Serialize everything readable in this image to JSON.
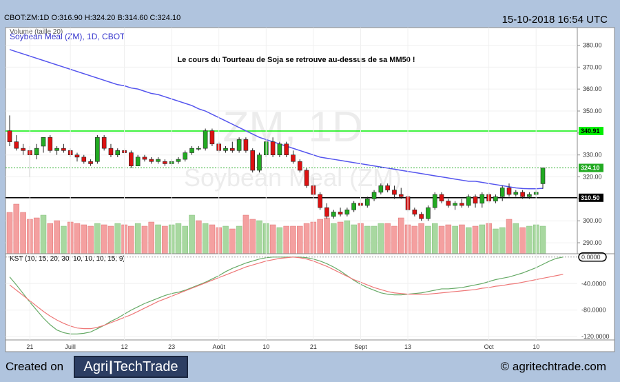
{
  "header": {
    "ohlc_line": "CBOT:ZM:1D O:316.90 H:324.20 B:314.60 C:324.10",
    "timestamp": "15-10-2018 16:54 UTC"
  },
  "footer": {
    "created_on": "Created on",
    "logo_left": "Agri",
    "logo_right": "TechTrade",
    "copyright": "© agritechtrade.com"
  },
  "colors": {
    "up": "#22aa22",
    "down": "#dd1111",
    "ma": "#5555ee",
    "resistance": "#00ee00",
    "support": "#000000"
  },
  "chart_data": [
    {
      "type": "candlestick",
      "legend_volume": "Volume (taille 20)",
      "legend_symbol": "Soybean Meal (ZM), 1D, CBOT",
      "annotation": "Le cours du Tourteau de Soja se retrouve au-dessus de sa MM50 !",
      "watermark_symbol": "ZM, 1D",
      "watermark_name": "Soybean Meal (ZM)",
      "ylim": [
        285,
        388
      ],
      "yticks": [
        "290.00",
        "300.00",
        "310.00",
        "320.00",
        "330.00",
        "340.00",
        "350.00",
        "360.00",
        "370.00",
        "380.00"
      ],
      "ytick_values": [
        290,
        300,
        310,
        320,
        330,
        340,
        350,
        360,
        370,
        380
      ],
      "xtick_labels": [
        "21",
        "Juill",
        "12",
        "23",
        "Août",
        "10",
        "21",
        "Sept",
        "13",
        "Oct",
        "10"
      ],
      "xtick_index": [
        3,
        9,
        17,
        24,
        31,
        38,
        45,
        52,
        59,
        71,
        78
      ],
      "candles": [
        [
          341,
          348,
          334,
          336
        ],
        [
          336,
          339,
          332,
          333
        ],
        [
          333,
          335,
          330,
          332
        ],
        [
          332,
          334,
          320,
          330
        ],
        [
          330,
          335,
          328,
          333
        ],
        [
          334,
          338,
          331,
          338
        ],
        [
          338,
          339,
          331,
          332
        ],
        [
          332,
          334,
          330,
          333
        ],
        [
          333,
          335,
          331,
          332
        ],
        [
          332,
          333,
          329,
          330
        ],
        [
          330,
          331,
          327,
          329
        ],
        [
          329,
          330,
          326,
          327
        ],
        [
          327,
          328,
          325,
          326
        ],
        [
          327,
          339,
          326,
          338
        ],
        [
          338,
          339,
          332,
          333
        ],
        [
          333,
          335,
          329,
          330
        ],
        [
          330,
          333,
          329,
          332
        ],
        [
          332,
          333,
          331,
          331
        ],
        [
          331,
          332,
          324,
          325
        ],
        [
          325,
          330,
          325,
          329
        ],
        [
          329,
          330,
          327,
          328
        ],
        [
          328,
          329,
          326,
          327
        ],
        [
          327,
          329,
          326,
          328
        ],
        [
          327,
          328,
          325,
          326
        ],
        [
          326,
          328,
          325,
          327
        ],
        [
          327,
          329,
          326,
          328
        ],
        [
          328,
          332,
          327,
          331
        ],
        [
          331,
          334,
          330,
          333
        ],
        [
          333,
          334,
          332,
          333
        ],
        [
          333,
          342,
          332,
          341
        ],
        [
          341,
          342,
          334,
          335
        ],
        [
          335,
          336,
          331,
          332
        ],
        [
          332,
          334,
          331,
          333
        ],
        [
          333,
          336,
          331,
          332
        ],
        [
          332,
          338,
          331,
          337
        ],
        [
          337,
          338,
          331,
          332
        ],
        [
          332,
          333,
          322,
          323
        ],
        [
          323,
          331,
          322,
          330
        ],
        [
          330,
          337,
          329,
          336
        ],
        [
          336,
          338,
          329,
          330
        ],
        [
          330,
          336,
          329,
          335
        ],
        [
          335,
          336,
          329,
          330
        ],
        [
          330,
          332,
          326,
          327
        ],
        [
          327,
          328,
          322,
          323
        ],
        [
          323,
          324,
          315,
          316
        ],
        [
          316,
          320,
          310,
          312
        ],
        [
          312,
          313,
          305,
          306
        ],
        [
          306,
          308,
          301,
          302
        ],
        [
          302,
          305,
          301,
          304
        ],
        [
          304,
          306,
          302,
          303
        ],
        [
          303,
          306,
          302,
          305
        ],
        [
          305,
          309,
          304,
          308
        ],
        [
          308,
          310,
          306,
          307
        ],
        [
          307,
          311,
          306,
          310
        ],
        [
          310,
          314,
          309,
          313
        ],
        [
          313,
          317,
          312,
          316
        ],
        [
          316,
          317,
          313,
          314
        ],
        [
          314,
          316,
          310,
          312
        ],
        [
          312,
          315,
          310,
          311
        ],
        [
          311,
          312,
          304,
          305
        ],
        [
          305,
          306,
          302,
          303
        ],
        [
          303,
          304,
          300,
          301
        ],
        [
          301,
          307,
          300,
          306
        ],
        [
          306,
          313,
          305,
          312
        ],
        [
          312,
          313,
          308,
          309
        ],
        [
          309,
          310,
          306,
          307
        ],
        [
          307,
          309,
          305,
          308
        ],
        [
          308,
          310,
          306,
          307
        ],
        [
          307,
          312,
          306,
          311
        ],
        [
          311,
          312,
          306,
          308
        ],
        [
          308,
          313,
          306,
          312
        ],
        [
          312,
          313,
          308,
          309
        ],
        [
          309,
          312,
          308,
          311
        ],
        [
          311,
          316,
          309,
          315
        ],
        [
          315,
          317,
          311,
          312
        ],
        [
          312,
          314,
          311,
          313
        ],
        [
          313,
          314,
          310,
          311
        ],
        [
          311,
          313,
          310,
          312
        ],
        [
          312,
          314,
          311,
          313
        ],
        [
          316.9,
          324.2,
          314.6,
          324.1
        ]
      ],
      "volume_up": [
        0,
        0,
        0,
        0,
        0,
        1,
        0,
        0,
        1,
        0,
        0,
        0,
        0,
        1,
        0,
        0,
        1,
        0,
        0,
        1,
        0,
        0,
        1,
        0,
        1,
        1,
        1,
        1,
        0,
        1,
        0,
        0,
        1,
        0,
        1,
        0,
        0,
        1,
        1,
        0,
        1,
        0,
        0,
        0,
        0,
        0,
        0,
        0,
        1,
        0,
        1,
        1,
        0,
        1,
        1,
        1,
        0,
        0,
        0,
        0,
        0,
        0,
        1,
        1,
        0,
        0,
        1,
        0,
        1,
        0,
        1,
        0,
        1,
        1,
        0,
        1,
        0,
        1,
        1,
        1
      ],
      "volume": [
        60,
        72,
        60,
        50,
        52,
        56,
        44,
        48,
        40,
        46,
        44,
        42,
        40,
        44,
        42,
        40,
        44,
        42,
        40,
        44,
        40,
        46,
        42,
        40,
        42,
        44,
        40,
        56,
        48,
        44,
        42,
        38,
        40,
        36,
        40,
        56,
        50,
        48,
        44,
        42,
        38,
        40,
        40,
        40,
        44,
        46,
        50,
        52,
        44,
        46,
        48,
        42,
        44,
        40,
        40,
        44,
        44,
        40,
        52,
        42,
        40,
        44,
        40,
        44,
        40,
        42,
        40,
        42,
        38,
        40,
        42,
        44,
        36,
        38,
        50,
        44,
        38,
        40,
        42,
        40
      ],
      "ma50": [
        378,
        377,
        376,
        375,
        374,
        373,
        372,
        371,
        370,
        369,
        368,
        367,
        366,
        365,
        364,
        363,
        362,
        361.5,
        360.5,
        360,
        359,
        358,
        357.5,
        356.5,
        355.5,
        354.5,
        353.5,
        352.5,
        351,
        350,
        348.5,
        347,
        345.5,
        344,
        342.5,
        341,
        339.5,
        338,
        337,
        336,
        335,
        334,
        333,
        332,
        331,
        330,
        329,
        328.5,
        328,
        327.5,
        327,
        326.5,
        326,
        325.5,
        325,
        324.5,
        324,
        323.5,
        323,
        322.5,
        322,
        321.5,
        321,
        320.5,
        320,
        319.5,
        319,
        318.5,
        318,
        318,
        317.5,
        317,
        316.5,
        316,
        315.5,
        315,
        314.7,
        314.6,
        314.6,
        314.8
      ],
      "resistance": 340.91,
      "resistance_label": "340.91",
      "support": 310.5,
      "support_label": "310.50",
      "last_label": "324.10"
    },
    {
      "type": "line",
      "title": "KST (10, 15, 20, 30, 10, 10, 10, 15, 9)",
      "ylim": [
        -125,
        5
      ],
      "yticks": [
        "0.0000",
        "-40.0000",
        "-80.0000",
        "-120.0000"
      ],
      "ytick_values": [
        0,
        -40,
        -80,
        -120
      ],
      "series": [
        {
          "values": [
            -30,
            -42,
            -55,
            -68,
            -80,
            -92,
            -102,
            -110,
            -114,
            -116,
            -116,
            -115,
            -113,
            -108,
            -103,
            -97,
            -92,
            -86,
            -80,
            -75,
            -70,
            -66,
            -62,
            -58,
            -55,
            -53,
            -50,
            -46,
            -42,
            -38,
            -33,
            -28,
            -22,
            -17,
            -13,
            -9,
            -6,
            -3,
            -1,
            0,
            0,
            0,
            0,
            0,
            -1,
            -3,
            -6,
            -10,
            -15,
            -21,
            -28,
            -35,
            -41,
            -46,
            -50,
            -54,
            -56,
            -57,
            -57,
            -56,
            -55,
            -54,
            -52,
            -50,
            -48,
            -48,
            -47,
            -46,
            -44,
            -42,
            -40,
            -37,
            -34,
            -32,
            -30,
            -27,
            -24,
            -20,
            -16,
            -11,
            -6,
            -2,
            0
          ]
        },
        {
          "values": [
            -42,
            -50,
            -58,
            -66,
            -74,
            -82,
            -89,
            -95,
            -100,
            -104,
            -107,
            -108,
            -108,
            -106,
            -103,
            -99,
            -95,
            -91,
            -87,
            -82,
            -77,
            -72,
            -67,
            -63,
            -59,
            -55,
            -51,
            -47,
            -43,
            -39,
            -35,
            -31,
            -27,
            -23,
            -19,
            -15,
            -12,
            -9,
            -6,
            -4,
            -2,
            -1,
            0,
            -1,
            -3,
            -6,
            -10,
            -14,
            -19,
            -24,
            -29,
            -34,
            -38,
            -42,
            -46,
            -49,
            -52,
            -54,
            -55,
            -56,
            -56,
            -56,
            -56,
            -55,
            -54,
            -53,
            -52,
            -51,
            -50,
            -49,
            -47,
            -46,
            -44,
            -43,
            -41,
            -40,
            -38,
            -36,
            -34,
            -32,
            -30,
            -28,
            -26
          ]
        }
      ]
    }
  ]
}
